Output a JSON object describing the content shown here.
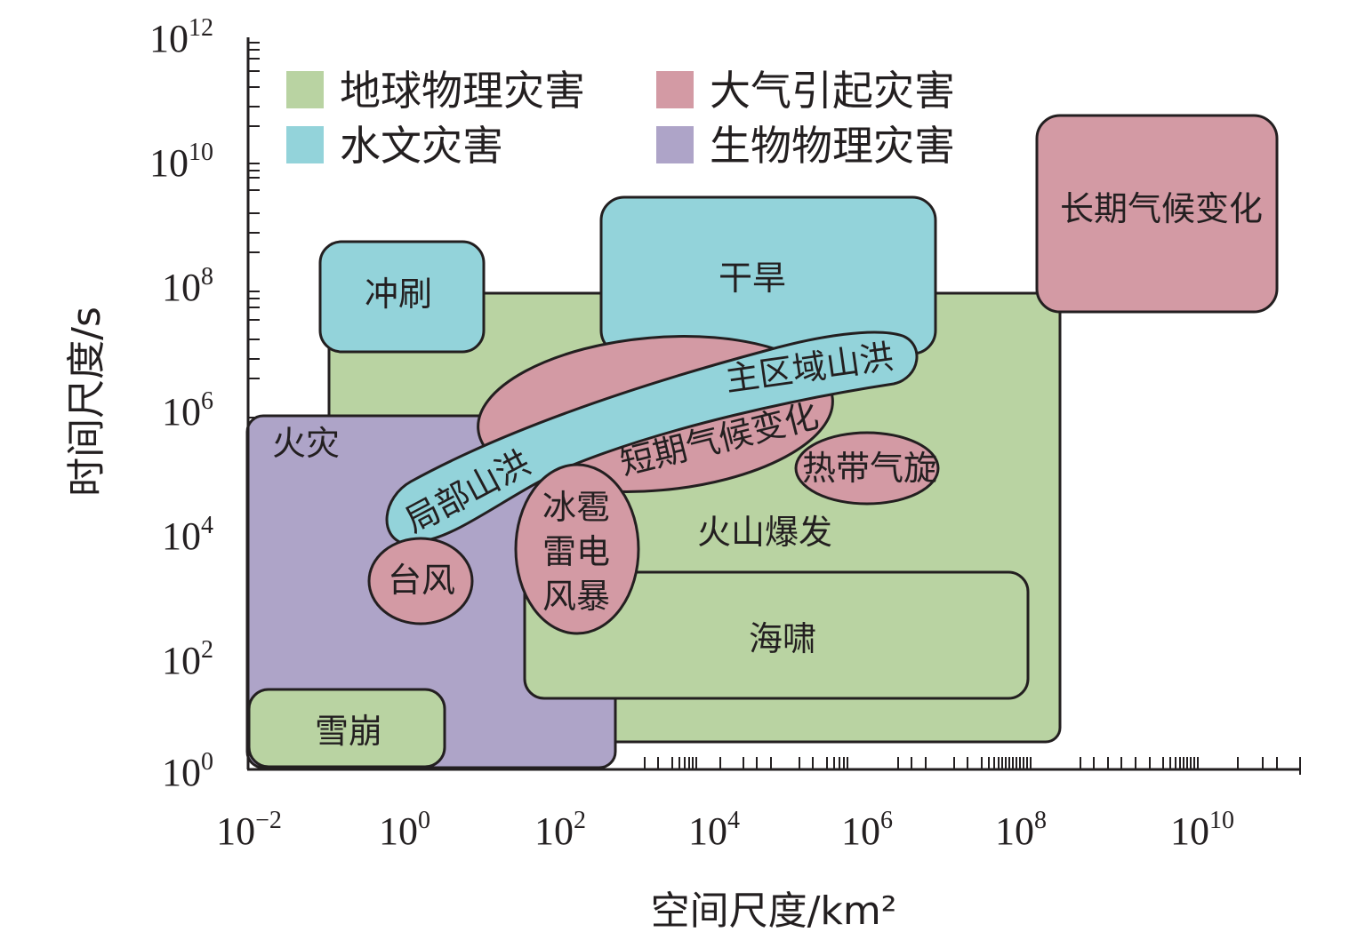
{
  "colors": {
    "geophysical": "#b9d3a2",
    "hydrological": "#93d3da",
    "atmospheric": "#d39aa4",
    "biophysical": "#aea4c8",
    "stroke": "#231f20"
  },
  "axes": {
    "x_label": "空间尺度/km²",
    "y_label": "时间尺度/s",
    "x_ticks": [
      {
        "base": "10",
        "exp": "−2"
      },
      {
        "base": "10",
        "exp": "0"
      },
      {
        "base": "10",
        "exp": "2"
      },
      {
        "base": "10",
        "exp": "4"
      },
      {
        "base": "10",
        "exp": "6"
      },
      {
        "base": "10",
        "exp": "8"
      },
      {
        "base": "10",
        "exp": "10"
      }
    ],
    "y_ticks": [
      {
        "base": "10",
        "exp": "12"
      },
      {
        "base": "10",
        "exp": "10"
      },
      {
        "base": "10",
        "exp": "8"
      },
      {
        "base": "10",
        "exp": "6"
      },
      {
        "base": "10",
        "exp": "4"
      },
      {
        "base": "10",
        "exp": "2"
      },
      {
        "base": "10",
        "exp": "0"
      }
    ]
  },
  "legend": [
    {
      "label": "地球物理灾害",
      "category": "geophysical"
    },
    {
      "label": "大气引起灾害",
      "category": "atmospheric"
    },
    {
      "label": "水文灾害",
      "category": "hydrological"
    },
    {
      "label": "生物物理灾害",
      "category": "biophysical"
    }
  ],
  "regions": {
    "volcano": "火山爆发",
    "tsunami": "海啸",
    "avalanche": "雪崩",
    "fire": "火灾",
    "erosion": "冲刷",
    "drought": "干旱",
    "long_climate": "长期气候变化",
    "short_climate": "短期气候变化",
    "main_flood": "主区域山洪",
    "local_flood": "局部山洪",
    "tropical_cyclone": "热带气旋",
    "typhoon": "台风",
    "hail": [
      "冰雹",
      "雷电",
      "风暴"
    ]
  }
}
